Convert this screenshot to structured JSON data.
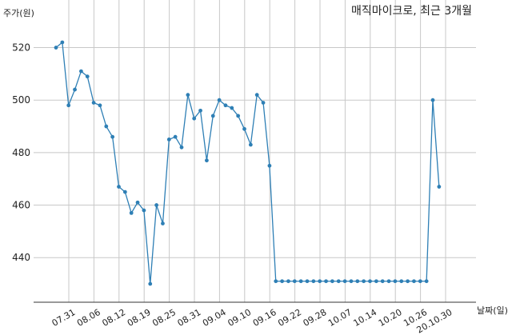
{
  "chart_data": {
    "type": "line",
    "title": "매직마이크로, 최근 3개월",
    "ylabel": "주가(원)",
    "xlabel": "날짜(일)",
    "ylim": [
      423,
      529
    ],
    "yticks": [
      440,
      460,
      480,
      500,
      520
    ],
    "xtick_labels": [
      "07.31",
      "08.06",
      "08.12",
      "08.19",
      "08.25",
      "08.31",
      "09.04",
      "09.10",
      "09.16",
      "09.22",
      "09.28",
      "10.07",
      "10.14",
      "10.20",
      "10.26",
      "20.10.30"
    ],
    "grid": true,
    "line_color": "#2e7fb5",
    "series": [
      {
        "values": [
          520,
          522,
          498,
          504,
          511,
          509,
          499,
          498,
          490,
          486,
          467,
          465,
          457,
          461,
          458,
          430,
          460,
          453,
          485,
          486,
          482,
          502,
          493,
          496,
          477,
          494,
          500,
          498,
          497,
          494,
          489,
          483,
          502,
          499,
          475,
          431,
          431,
          431,
          431,
          431,
          431,
          431,
          431,
          431,
          431,
          431,
          431,
          431,
          431,
          431,
          431,
          431,
          431,
          431,
          431,
          431,
          431,
          431,
          431,
          431,
          500,
          467
        ]
      }
    ]
  }
}
